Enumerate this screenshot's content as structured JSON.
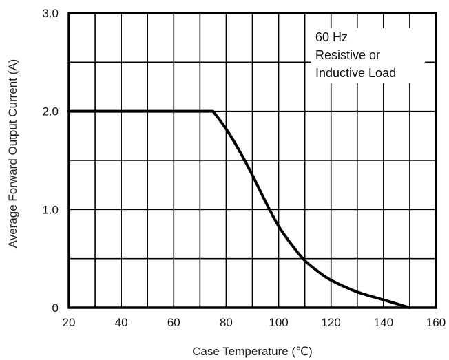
{
  "chart_data": {
    "type": "line",
    "title": "",
    "xlabel": "Case Temperature (℃)",
    "ylabel": "Average Forward Output Current (A)",
    "xlim": [
      20,
      160
    ],
    "ylim": [
      0,
      3.0
    ],
    "x_ticks": [
      20,
      40,
      60,
      80,
      100,
      120,
      140,
      160
    ],
    "x_tick_labels": [
      "20",
      "40",
      "60",
      "80",
      "100",
      "120",
      "140",
      "160"
    ],
    "y_ticks": [
      0,
      1.0,
      2.0,
      3.0
    ],
    "y_tick_labels": [
      "0",
      "1.0",
      "2.0",
      "3.0"
    ],
    "grid": true,
    "grid_x_step": 10,
    "grid_y_step": 0.5,
    "annotation": [
      "60 Hz",
      "Resistive or",
      "Inductive Load"
    ],
    "annotation_placement": "top-right",
    "line_color": "#000000",
    "series": [
      {
        "x": [
          20,
          75,
          80,
          85,
          90,
          95,
          100,
          105,
          110,
          115,
          120,
          130,
          140,
          150
        ],
        "values": [
          2.0,
          2.0,
          1.82,
          1.6,
          1.35,
          1.08,
          0.83,
          0.64,
          0.48,
          0.37,
          0.28,
          0.16,
          0.08,
          0.0
        ]
      }
    ]
  }
}
